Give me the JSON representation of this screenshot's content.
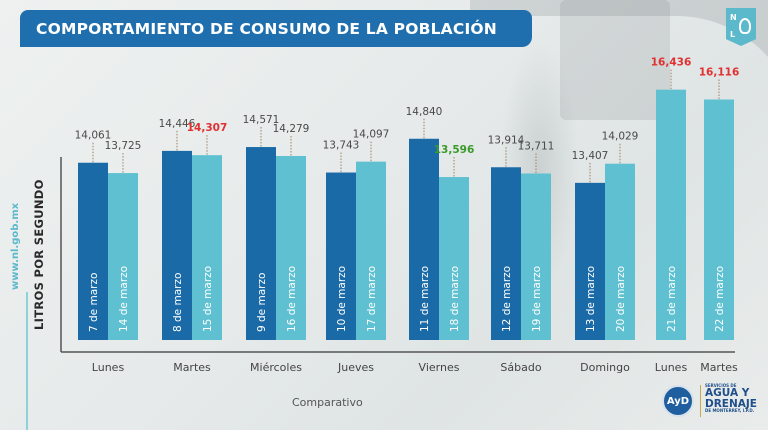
{
  "header": {
    "title": "COMPORTAMIENTO DE CONSUMO DE LA POBLACIÓN",
    "nl_logo": {
      "n": "N",
      "l": "L",
      "icon": "lion-shield-icon"
    }
  },
  "side": {
    "url": "www.nl.gob.mx"
  },
  "footer": {
    "subtitle": "Comparativo",
    "logo": {
      "mark": "AyD",
      "line1": "SERVICIOS DE",
      "line2": "AGUA Y",
      "line3": "DRENAJE",
      "line4": "DE MONTERREY, I.P.D."
    }
  },
  "colors": {
    "title_bg": "#1f6fae",
    "bar_week1": "#1a6aa8",
    "bar_week2": "#5ec0d0",
    "label_default": "#4a4a4a",
    "label_high": "#e03030",
    "label_low": "#3a9a2a"
  },
  "chart_data": {
    "type": "bar",
    "title": "COMPORTAMIENTO DE CONSUMO DE LA POBLACIÓN",
    "xlabel": "Comparativo",
    "ylabel": "LITROS POR SEGUNDO",
    "grid": false,
    "legend": "none",
    "groups": [
      {
        "day": "Lunes",
        "bars": [
          {
            "date": "7 de marzo",
            "value": 14061,
            "series": "week1",
            "highlight": "none"
          },
          {
            "date": "14 de marzo",
            "value": 13725,
            "series": "week2",
            "highlight": "none"
          }
        ]
      },
      {
        "day": "Martes",
        "bars": [
          {
            "date": "8 de marzo",
            "value": 14446,
            "series": "week1",
            "highlight": "none"
          },
          {
            "date": "15 de marzo",
            "value": 14307,
            "series": "week2",
            "highlight": "high"
          }
        ]
      },
      {
        "day": "Miércoles",
        "bars": [
          {
            "date": "9 de marzo",
            "value": 14571,
            "series": "week1",
            "highlight": "none"
          },
          {
            "date": "16 de marzo",
            "value": 14279,
            "series": "week2",
            "highlight": "none"
          }
        ]
      },
      {
        "day": "Jueves",
        "bars": [
          {
            "date": "10 de marzo",
            "value": 13743,
            "series": "week1",
            "highlight": "none"
          },
          {
            "date": "17 de marzo",
            "value": 14097,
            "series": "week2",
            "highlight": "none"
          }
        ]
      },
      {
        "day": "Viernes",
        "bars": [
          {
            "date": "11 de marzo",
            "value": 14840,
            "series": "week1",
            "highlight": "none"
          },
          {
            "date": "18 de marzo",
            "value": 13596,
            "series": "week2",
            "highlight": "low"
          }
        ]
      },
      {
        "day": "Sábado",
        "bars": [
          {
            "date": "12 de marzo",
            "value": 13914,
            "series": "week1",
            "highlight": "none"
          },
          {
            "date": "19 de marzo",
            "value": 13711,
            "series": "week2",
            "highlight": "none"
          }
        ]
      },
      {
        "day": "Domingo",
        "bars": [
          {
            "date": "13 de marzo",
            "value": 13407,
            "series": "week1",
            "highlight": "none"
          },
          {
            "date": "20 de marzo",
            "value": 14029,
            "series": "week2",
            "highlight": "none"
          }
        ]
      },
      {
        "day": "Lunes",
        "bars": [
          {
            "date": "21 de marzo",
            "value": 16436,
            "series": "week2",
            "highlight": "high"
          }
        ]
      },
      {
        "day": "Martes",
        "bars": [
          {
            "date": "22 de marzo",
            "value": 16116,
            "series": "week2",
            "highlight": "high"
          }
        ]
      }
    ],
    "ylim": [
      8300,
      17400
    ]
  }
}
